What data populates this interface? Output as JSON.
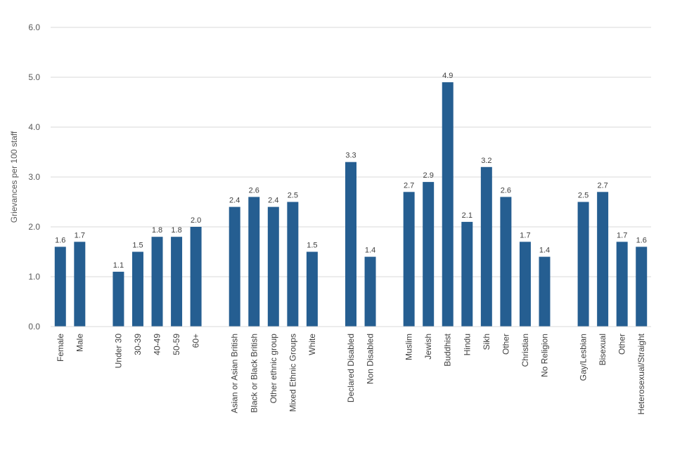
{
  "chart_data": {
    "type": "bar",
    "title": "",
    "xlabel": "",
    "ylabel": "Grievances per 100 staff",
    "ylim": [
      0,
      6
    ],
    "yticks": [
      "0.0",
      "1.0",
      "2.0",
      "3.0",
      "4.0",
      "5.0",
      "6.0"
    ],
    "grid": true,
    "bar_color": "#255E91",
    "groups": [
      {
        "categories": [
          "Female",
          "Male"
        ],
        "values": [
          1.6,
          1.7
        ],
        "labels": [
          "1.6",
          "1.7"
        ]
      },
      {
        "categories": [
          "Under 30",
          "30-39",
          "40-49",
          "50-59",
          "60+"
        ],
        "values": [
          1.1,
          1.5,
          1.8,
          1.8,
          2.0
        ],
        "labels": [
          "1.1",
          "1.5",
          "1.8",
          "1.8",
          "2.0"
        ]
      },
      {
        "categories": [
          "Asian or Asian British",
          "Black or Black British",
          "Other ethnic group",
          "Mixed Ethnic Groups",
          "White"
        ],
        "values": [
          2.4,
          2.6,
          2.4,
          2.5,
          1.5
        ],
        "labels": [
          "2.4",
          "2.6",
          "2.4",
          "2.5",
          "1.5"
        ]
      },
      {
        "categories": [
          "Declared Disabled",
          "Non Disabled"
        ],
        "values": [
          3.3,
          1.4
        ],
        "labels": [
          "3.3",
          "1.4"
        ]
      },
      {
        "categories": [
          "Muslim",
          "Jewish",
          "Buddhist",
          "Hindu",
          "Sikh",
          "Other",
          "Christian",
          "No Religion"
        ],
        "values": [
          2.7,
          2.9,
          4.9,
          2.1,
          3.2,
          2.6,
          1.7,
          1.4
        ],
        "labels": [
          "2.7",
          "2.9",
          "4.9",
          "2.1",
          "3.2",
          "2.6",
          "1.7",
          "1.4"
        ]
      },
      {
        "categories": [
          "Gay/Lesbian",
          "Bisexual",
          "Other",
          "Heterosexual/Straight"
        ],
        "values": [
          2.5,
          2.7,
          1.7,
          1.6
        ],
        "labels": [
          "2.5",
          "2.7",
          "1.7",
          "1.6"
        ]
      }
    ]
  }
}
